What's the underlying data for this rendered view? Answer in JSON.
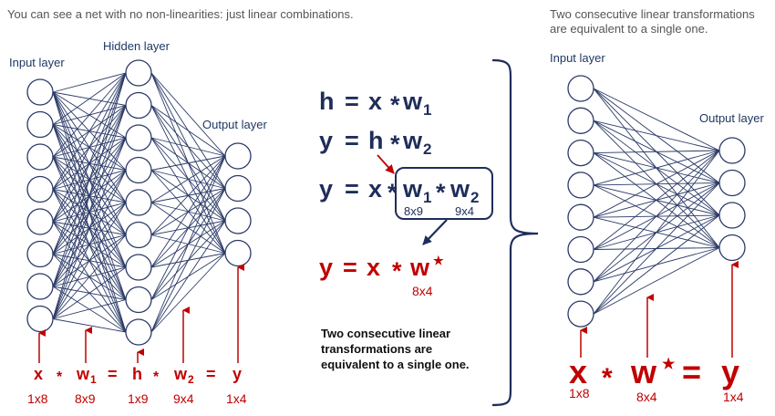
{
  "captions": {
    "left": "You can see a net with no non-linearities: just linear combinations.",
    "right_line1": "Two consecutive linear transformations",
    "right_line2": "are equivalent to a single one."
  },
  "left_net": {
    "input_label": "Input layer",
    "hidden_label": "Hidden layer",
    "output_label": "Output layer",
    "input_nodes": 8,
    "hidden_nodes": 9,
    "output_nodes": 4
  },
  "right_net": {
    "input_label": "Input layer",
    "output_label": "Output layer",
    "input_nodes": 8,
    "output_nodes": 4
  },
  "bottom_left_eq": {
    "x": "x",
    "star1": "*",
    "w1": "w",
    "w1_sub": "1",
    "eq1": "=",
    "h": "h",
    "star2": "*",
    "w2": "w",
    "w2_sub": "2",
    "eq2": "=",
    "y": "y",
    "dims": [
      "1x8",
      "8x9",
      "1x9",
      "9x4",
      "1x4"
    ]
  },
  "middle": {
    "eq1": {
      "lhs": "h",
      "eq": "=",
      "x": "x",
      "op": "*",
      "w": "w",
      "sub": "1"
    },
    "eq2": {
      "lhs": "y",
      "eq": "=",
      "h": "h",
      "op": "*",
      "w": "w",
      "sub": "2"
    },
    "eq3": {
      "lhs": "y",
      "eq": "=",
      "x": "x",
      "op": "*",
      "w1": "w",
      "w1_sub": "1",
      "op2": "*",
      "w2": "w",
      "w2_sub": "2",
      "dim1": "8x9",
      "dim2": "9x4"
    },
    "eq4": {
      "lhs": "y",
      "eq": "=",
      "x": "x",
      "op": "*",
      "w": "w",
      "sup": "★",
      "dim": "8x4"
    },
    "note": [
      "Two consecutive linear",
      "transformations are",
      "equivalent to a single one."
    ]
  },
  "bottom_right_eq": {
    "x": "x",
    "star": "*",
    "w": "w",
    "sup": "★",
    "eq": "=",
    "y": "y",
    "dims": [
      "1x8",
      "8x4",
      "1x4"
    ]
  },
  "colors": {
    "navy": "#1f2d5a",
    "red": "#c00000",
    "edge": "#2b3a67"
  }
}
